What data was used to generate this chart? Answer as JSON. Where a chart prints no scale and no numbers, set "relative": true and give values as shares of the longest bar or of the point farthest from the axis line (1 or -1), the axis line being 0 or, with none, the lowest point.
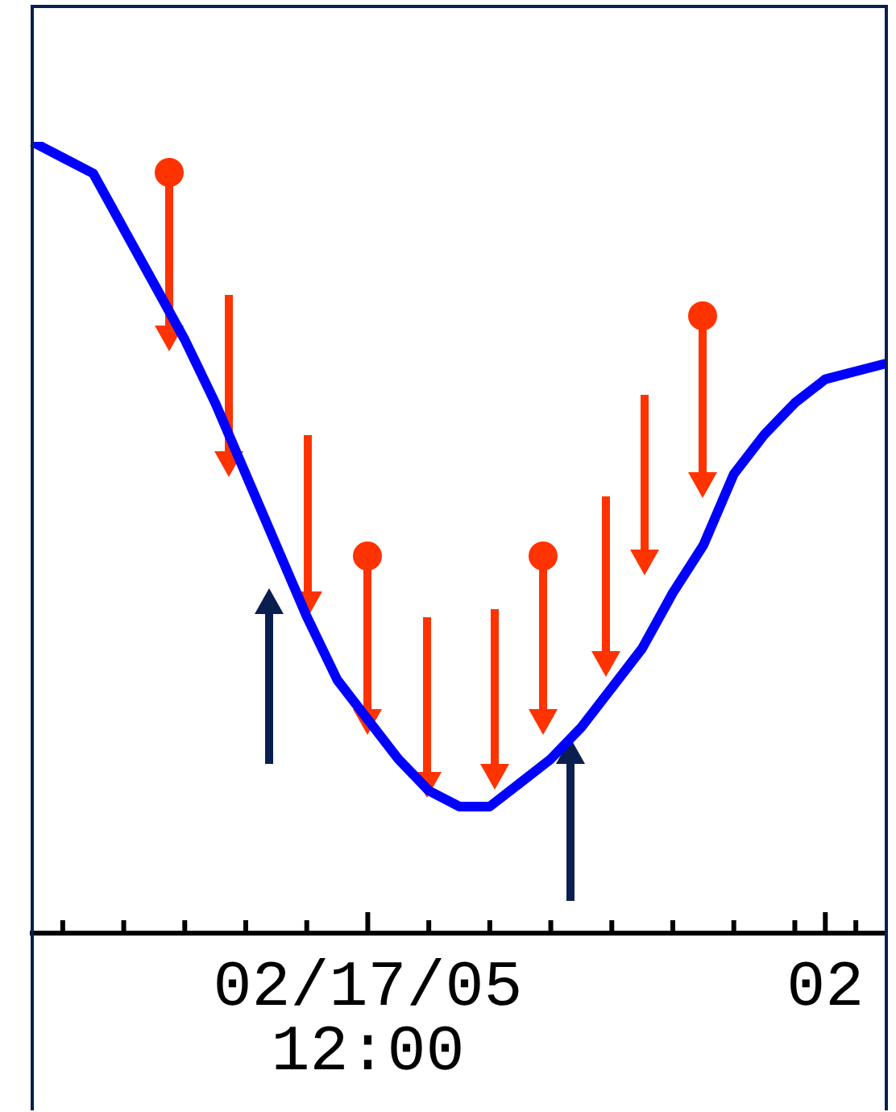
{
  "chart_data": {
    "type": "line",
    "relative": true,
    "categories": [
      null,
      null,
      null,
      null,
      null,
      null,
      null,
      null,
      null,
      null,
      null,
      "02/17/05 12:00",
      null,
      null,
      null,
      null,
      null,
      null,
      null,
      null,
      null,
      null,
      null,
      null,
      null,
      null,
      "02",
      null,
      null
    ],
    "series": [
      {
        "color": "#0000ff",
        "values": [
          1.0,
          0.98,
          0.96,
          0.89,
          0.82,
          0.75,
          0.67,
          0.58,
          0.49,
          0.4,
          0.32,
          0.27,
          0.22,
          0.18,
          0.16,
          0.16,
          0.19,
          0.22,
          0.26,
          0.31,
          0.36,
          0.43,
          0.49,
          0.58,
          0.63,
          0.67,
          0.7,
          0.71,
          0.72
        ]
      }
    ]
  }
}
